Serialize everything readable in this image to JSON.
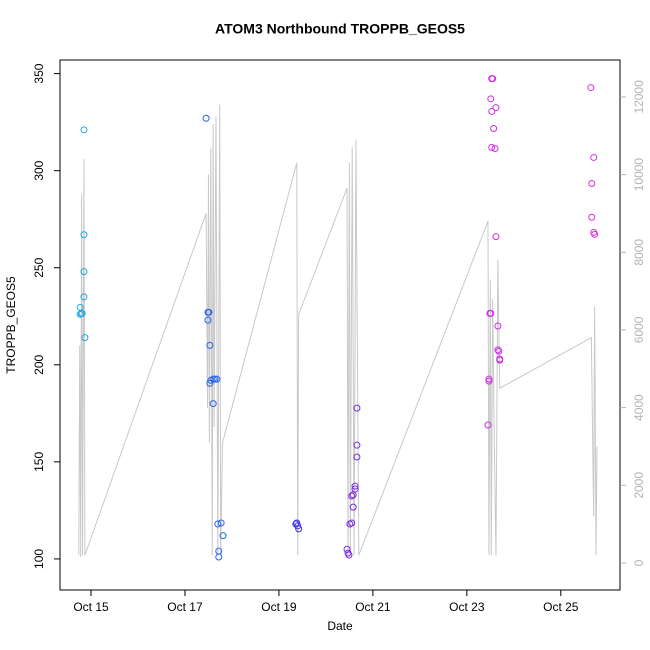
{
  "chart_data": {
    "type": "scatter",
    "title": "ATOM3 Northbound TROPPB_GEOS5",
    "xlabel": "Date",
    "ylabel": "TROPPB_GEOS5",
    "xlim": [
      14.34,
      26.26
    ],
    "xticks": [
      {
        "value": 15,
        "label": "Oct 15"
      },
      {
        "value": 17,
        "label": "Oct 17"
      },
      {
        "value": 19,
        "label": "Oct 19"
      },
      {
        "value": 21,
        "label": "Oct 21"
      },
      {
        "value": 23,
        "label": "Oct 23"
      },
      {
        "value": 25,
        "label": "Oct 25"
      }
    ],
    "ylim": [
      84,
      357
    ],
    "yticks": [
      100,
      150,
      200,
      250,
      300,
      350
    ],
    "y2lim": [
      -695,
      12950
    ],
    "y2ticks": [
      0,
      2000,
      4000,
      6000,
      8000,
      10000,
      12000
    ],
    "y2color": "#b3b3b3",
    "x": [
      14.85,
      14.85,
      14.85,
      14.85,
      14.87,
      14.77,
      14.79,
      14.81,
      14.77,
      17.45,
      17.49,
      17.51,
      17.49,
      17.53,
      17.53,
      17.55,
      17.6,
      17.64,
      17.68,
      17.6,
      17.7,
      17.77,
      17.72,
      17.72,
      17.81,
      19.38,
      19.4,
      19.42,
      19.36,
      20.45,
      20.47,
      20.49,
      20.51,
      20.55,
      20.58,
      20.58,
      20.62,
      20.62,
      20.66,
      20.66,
      20.66,
      20.55,
      23.45,
      23.47,
      23.47,
      23.49,
      23.51,
      23.53,
      23.55,
      23.51,
      23.53,
      23.62,
      23.57,
      23.53,
      23.6,
      23.62,
      23.66,
      23.66,
      23.68,
      23.7,
      23.7,
      25.64,
      25.7,
      25.66,
      25.66,
      25.7,
      25.72
    ],
    "values": [
      321,
      267,
      248,
      235,
      214,
      229.6,
      226.5,
      226.5,
      226,
      327,
      227,
      227,
      223,
      210,
      190.5,
      192,
      192.6,
      192.6,
      192.6,
      180,
      118,
      118.5,
      104,
      101,
      112,
      118.5,
      117,
      115.5,
      118,
      105,
      103,
      102,
      118,
      118.5,
      126.7,
      133,
      137.5,
      136,
      177.7,
      158.6,
      152.5,
      132.4,
      169,
      192.6,
      191.6,
      226.5,
      226.5,
      347.4,
      347.4,
      337,
      330.5,
      332.5,
      321.7,
      312,
      311.4,
      266,
      220,
      207.7,
      207,
      202.4,
      203,
      342.8,
      306.8,
      293.4,
      276,
      268.2,
      267.2
    ],
    "colors": [
      "#1fa8e6",
      "#1fa8e6",
      "#1fa8e6",
      "#1fa8e6",
      "#1fa8e6",
      "#1fa8e6",
      "#1fa8e6",
      "#1fa8e6",
      "#1fa8e6",
      "#2a64e8",
      "#2a64e8",
      "#2a64e8",
      "#2a64e8",
      "#2a64e8",
      "#2a64e8",
      "#2a64e8",
      "#2a64e8",
      "#2a64e8",
      "#2a64e8",
      "#2a64e8",
      "#2a64e8",
      "#2a64e8",
      "#2a64e8",
      "#2a64e8",
      "#2a64e8",
      "#3a2ee2",
      "#3a2ee2",
      "#3a2ee2",
      "#3a2ee2",
      "#7a2ae2",
      "#7a2ae2",
      "#7a2ae2",
      "#7a2ae2",
      "#7a2ae2",
      "#7a2ae2",
      "#7a2ae2",
      "#7a2ae2",
      "#7a2ae2",
      "#7a2ae2",
      "#7a2ae2",
      "#7a2ae2",
      "#7a2ae2",
      "#d22ce8",
      "#d22ce8",
      "#d22ce8",
      "#d22ce8",
      "#d22ce8",
      "#d22ce8",
      "#d22ce8",
      "#d22ce8",
      "#d22ce8",
      "#d22ce8",
      "#d22ce8",
      "#d22ce8",
      "#d22ce8",
      "#d22ce8",
      "#d22ce8",
      "#d22ce8",
      "#d22ce8",
      "#d22ce8",
      "#d22ce8",
      "#e22ae4",
      "#e22ae4",
      "#e22ae4",
      "#e22ae4",
      "#e22ae4",
      "#e22ae4"
    ],
    "line": {
      "axis": "y2",
      "color": "#c8c8c8",
      "x": [
        14.74,
        14.76,
        14.78,
        14.8,
        14.82,
        14.85,
        14.87,
        17.45,
        17.48,
        17.5,
        17.52,
        17.55,
        17.58,
        17.6,
        17.62,
        17.66,
        17.7,
        17.74,
        17.76,
        17.8,
        19.38,
        19.4,
        19.42,
        20.45,
        20.47,
        20.5,
        20.52,
        20.56,
        20.6,
        20.64,
        20.7,
        23.45,
        23.47,
        23.5,
        23.52,
        23.55,
        23.58,
        23.62,
        23.66,
        23.7,
        25.65,
        25.7,
        25.72,
        25.75,
        25.77
      ],
      "values": [
        200,
        5600,
        150,
        9500,
        200,
        10400,
        200,
        9000,
        4000,
        10000,
        3100,
        10700,
        200,
        11300,
        3500,
        11500,
        200,
        11800,
        200,
        3100,
        10300,
        200,
        6400,
        9650,
        200,
        10300,
        200,
        10700,
        200,
        10900,
        200,
        8800,
        200,
        7300,
        200,
        6800,
        3500,
        200,
        7800,
        4500,
        5800,
        1200,
        6600,
        200,
        3000
      ]
    }
  }
}
